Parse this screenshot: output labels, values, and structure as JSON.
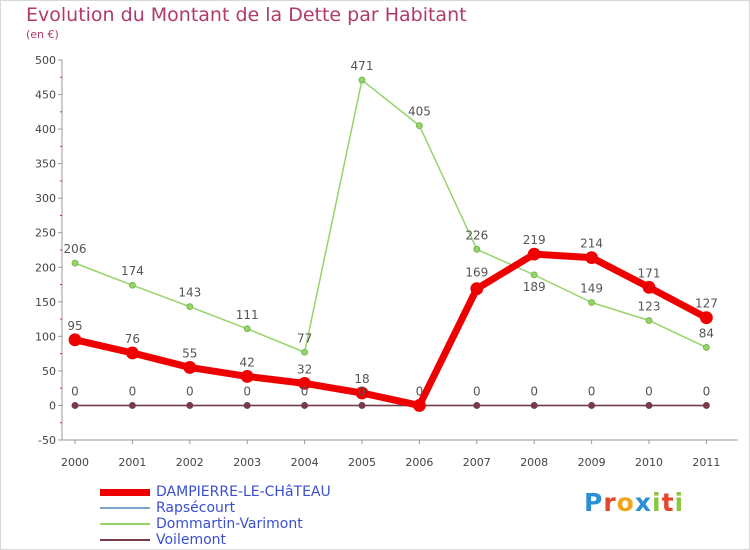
{
  "header": {
    "title": "Evolution du Montant de la Dette par Habitant",
    "unit": "(en €)"
  },
  "logo": {
    "text": "Proxiti"
  },
  "chart_data": {
    "type": "line",
    "title": "Evolution du Montant de la Dette par Habitant",
    "subtitle": "(en €)",
    "xlabel": "",
    "ylabel": "",
    "x": [
      "2000",
      "2001",
      "2002",
      "2003",
      "2004",
      "2005",
      "2006",
      "2007",
      "2008",
      "2009",
      "2010",
      "2011"
    ],
    "ylim": [
      -50,
      500
    ],
    "yticks": [
      -50,
      0,
      50,
      100,
      150,
      200,
      250,
      300,
      350,
      400,
      450,
      500
    ],
    "grid": false,
    "legend_position": "bottom-left",
    "series": [
      {
        "name": "DAMPIERRE-LE-CHâTEAU",
        "color": "#ee0000",
        "values": [
          95,
          76,
          55,
          42,
          32,
          18,
          0,
          169,
          219,
          214,
          171,
          127
        ]
      },
      {
        "name": "Rapsécourt",
        "color": "#7fa5c9",
        "values": [
          0,
          0,
          0,
          0,
          0,
          0,
          0,
          0,
          0,
          0,
          0,
          0
        ]
      },
      {
        "name": "Dommartin-Varimont",
        "color": "#96d46a",
        "values": [
          206,
          174,
          143,
          111,
          77,
          471,
          405,
          226,
          189,
          149,
          123,
          84
        ]
      },
      {
        "name": "Voilemont",
        "color": "#7a3b48",
        "values": [
          0,
          0,
          0,
          0,
          0,
          0,
          0,
          0,
          0,
          0,
          0,
          0
        ]
      }
    ],
    "data_labels": [
      {
        "series": "DAMPIERRE-LE-CHâTEAU",
        "labels": [
          "95",
          "76",
          "55",
          "42",
          "32",
          "18",
          "0",
          "169",
          "219",
          "214",
          "171",
          "127"
        ]
      },
      {
        "series": "Dommartin-Varimont",
        "labels": [
          "206",
          "174",
          "143",
          "111",
          "77",
          "471",
          "405",
          "226",
          "189",
          "149",
          "123",
          "84"
        ]
      },
      {
        "series": "Voilemont",
        "labels": [
          "0",
          "0",
          "0",
          "0",
          "0",
          "0",
          "",
          "0",
          "0",
          "0",
          "0",
          "0"
        ]
      }
    ]
  }
}
